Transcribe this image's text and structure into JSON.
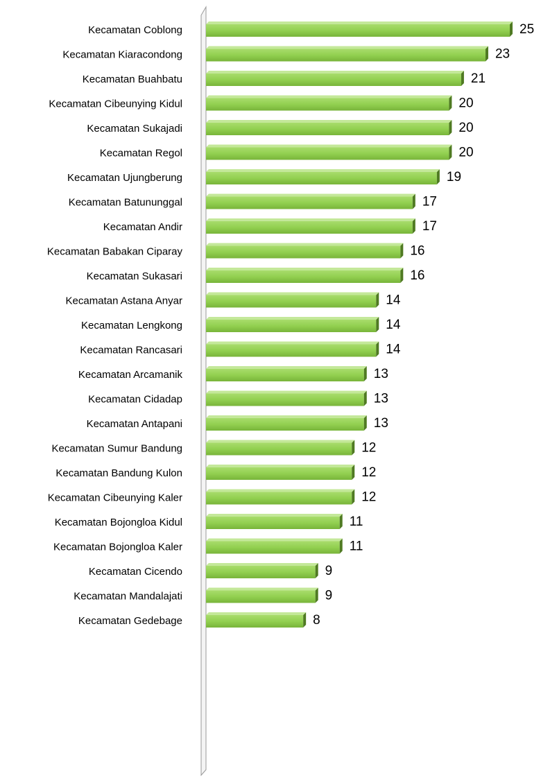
{
  "chart_data": {
    "type": "bar",
    "orientation": "horizontal",
    "color": "#92d050",
    "categories": [
      "Kecamatan Coblong",
      "Kecamatan Kiaracondong",
      "Kecamatan Buahbatu",
      "Kecamatan Cibeunying Kidul",
      "Kecamatan Sukajadi",
      "Kecamatan Regol",
      "Kecamatan Ujungberung",
      "Kecamatan Batununggal",
      "Kecamatan Andir",
      "Kecamatan Babakan Ciparay",
      "Kecamatan Sukasari",
      "Kecamatan Astana Anyar",
      "Kecamatan Lengkong",
      "Kecamatan Rancasari",
      "Kecamatan Arcamanik",
      "Kecamatan Cidadap",
      "Kecamatan Antapani",
      "Kecamatan Sumur Bandung",
      "Kecamatan Bandung Kulon",
      "Kecamatan Cibeunying Kaler",
      "Kecamatan Bojongloa Kidul",
      "Kecamatan Bojongloa Kaler",
      "Kecamatan Cicendo",
      "Kecamatan Mandalajati",
      "Kecamatan Gedebage"
    ],
    "values": [
      25,
      23,
      21,
      20,
      20,
      20,
      19,
      17,
      17,
      16,
      16,
      14,
      14,
      14,
      13,
      13,
      13,
      12,
      12,
      12,
      11,
      11,
      9,
      9,
      8
    ]
  }
}
